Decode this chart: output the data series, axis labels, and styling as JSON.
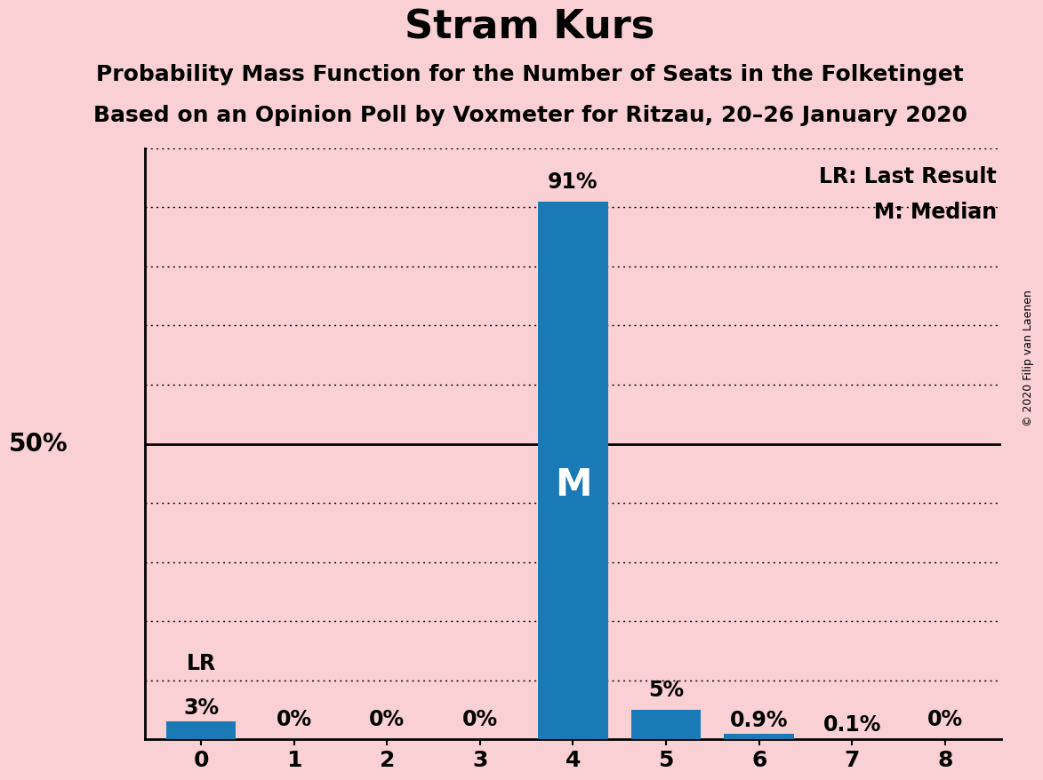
{
  "title": "Stram Kurs",
  "subtitle1": "Probability Mass Function for the Number of Seats in the Folketinget",
  "subtitle2": "Based on an Opinion Poll by Voxmeter for Ritzau, 20–26 January 2020",
  "categories": [
    0,
    1,
    2,
    3,
    4,
    5,
    6,
    7,
    8
  ],
  "values": [
    3.0,
    0.0,
    0.0,
    0.0,
    91.0,
    5.0,
    0.9,
    0.1,
    0.0
  ],
  "bar_color": "#1a7ab5",
  "background_color": "#f9d0d4",
  "label_50pct": "50%",
  "median_seat": 4,
  "lr_seat": 0,
  "bar_labels": [
    "3%",
    "0%",
    "0%",
    "0%",
    "91%",
    "5%",
    "0.9%",
    "0.1%",
    "0%"
  ],
  "legend_lr": "LR: Last Result",
  "legend_m": "M: Median",
  "copyright": "© 2020 Filip van Laenen",
  "ylim": [
    0,
    100
  ],
  "yticks": [
    0,
    10,
    20,
    30,
    40,
    50,
    60,
    70,
    80,
    90,
    100
  ],
  "title_fontsize": 32,
  "subtitle_fontsize": 18,
  "tick_fontsize": 18,
  "label_fontsize": 17,
  "fifty_pct_fontsize": 20,
  "lr_fontsize": 17,
  "m_fontsize": 30,
  "legend_fontsize": 17,
  "copyright_fontsize": 9
}
